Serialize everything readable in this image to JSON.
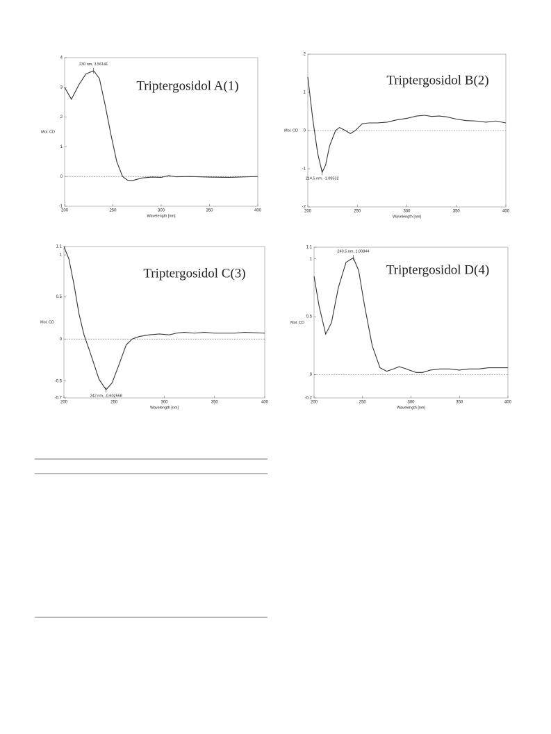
{
  "chart_data": [
    {
      "type": "line",
      "title": "Triptergosidol A(1)",
      "xlabel": "Wavelength [nm]",
      "ylabel": "Mol. CD",
      "xlim": [
        200,
        400
      ],
      "ylim": [
        -1,
        4
      ],
      "xticks": [
        200,
        250,
        300,
        350,
        400
      ],
      "yticks": [
        -1,
        0,
        1,
        2,
        3,
        4
      ],
      "color": "#333333",
      "x": [
        200,
        207,
        215,
        222,
        230,
        236,
        242,
        248,
        254,
        260,
        265,
        270,
        280,
        290,
        300,
        308,
        315,
        330,
        350,
        370,
        390,
        400
      ],
      "values": [
        3.0,
        2.6,
        3.1,
        3.45,
        3.56,
        3.3,
        2.4,
        1.4,
        0.5,
        0.0,
        -0.12,
        -0.14,
        -0.05,
        -0.02,
        -0.03,
        0.03,
        -0.01,
        0.0,
        -0.02,
        -0.03,
        -0.01,
        0.0
      ],
      "annotations": [
        {
          "text": "230 nm, 3.56141",
          "x": 230,
          "y": 3.56141
        }
      ]
    },
    {
      "type": "line",
      "title": "Triptergosidol B(2)",
      "xlabel": "Wavelength [nm]",
      "ylabel": "Mol. CD",
      "xlim": [
        200,
        400
      ],
      "ylim": [
        -2,
        2
      ],
      "xticks": [
        200,
        250,
        300,
        350,
        400
      ],
      "yticks": [
        -2,
        -1,
        0,
        1,
        2
      ],
      "color": "#333333",
      "x": [
        200,
        205,
        210,
        214.5,
        218,
        222,
        228,
        232,
        238,
        243,
        248,
        255,
        262,
        270,
        280,
        290,
        300,
        310,
        318,
        325,
        333,
        340,
        350,
        360,
        370,
        380,
        390,
        400
      ],
      "values": [
        1.4,
        0.3,
        -0.6,
        -1.095,
        -0.9,
        -0.4,
        0.0,
        0.08,
        0.0,
        -0.08,
        0.0,
        0.18,
        0.2,
        0.2,
        0.22,
        0.28,
        0.32,
        0.38,
        0.4,
        0.37,
        0.38,
        0.36,
        0.3,
        0.26,
        0.25,
        0.22,
        0.25,
        0.2
      ],
      "annotations": [
        {
          "text": "214.5 nm, -1.09532",
          "x": 214.5,
          "y": -1.09532
        }
      ]
    },
    {
      "type": "line",
      "title": "Triptergosidol C(3)",
      "xlabel": "Wavelength [nm]",
      "ylabel": "Mol. CD",
      "xlim": [
        200,
        400
      ],
      "ylim": [
        -0.7,
        1.1
      ],
      "xticks": [
        200,
        250,
        300,
        350,
        400
      ],
      "yticks": [
        -0.7,
        -0.5,
        0,
        0.5,
        1,
        1.1
      ],
      "color": "#333333",
      "x": [
        200,
        205,
        210,
        215,
        220,
        225,
        230,
        235,
        242,
        248,
        255,
        262,
        268,
        275,
        285,
        295,
        305,
        312,
        320,
        330,
        340,
        350,
        360,
        370,
        380,
        400
      ],
      "values": [
        1.1,
        0.95,
        0.65,
        0.3,
        0.05,
        -0.12,
        -0.3,
        -0.48,
        -0.6026,
        -0.52,
        -0.3,
        -0.07,
        0.0,
        0.03,
        0.05,
        0.06,
        0.05,
        0.07,
        0.08,
        0.07,
        0.08,
        0.07,
        0.07,
        0.07,
        0.08,
        0.07
      ],
      "annotations": [
        {
          "text": "242 nm, -0.602558",
          "x": 242,
          "y": -0.602558
        }
      ]
    },
    {
      "type": "line",
      "title": "Triptergosidol D(4)",
      "xlabel": "Wavelength [nm]",
      "ylabel": "Mol. CD",
      "xlim": [
        200,
        400
      ],
      "ylim": [
        -0.2,
        1.1
      ],
      "xticks": [
        200,
        250,
        300,
        350,
        400
      ],
      "yticks": [
        -0.2,
        0,
        0.5,
        1,
        1.1
      ],
      "color": "#333333",
      "x": [
        200,
        205,
        212,
        218,
        225,
        233,
        240.5,
        246,
        252,
        260,
        268,
        275,
        282,
        288,
        295,
        305,
        312,
        320,
        330,
        340,
        350,
        360,
        370,
        380,
        400
      ],
      "values": [
        0.85,
        0.6,
        0.35,
        0.45,
        0.75,
        0.97,
        1.008,
        0.9,
        0.6,
        0.25,
        0.06,
        0.03,
        0.05,
        0.07,
        0.05,
        0.02,
        0.02,
        0.04,
        0.05,
        0.05,
        0.04,
        0.05,
        0.05,
        0.06,
        0.06
      ],
      "annotations": [
        {
          "text": "240.5 nm, 1.00844",
          "x": 240.5,
          "y": 1.00844
        }
      ]
    }
  ]
}
